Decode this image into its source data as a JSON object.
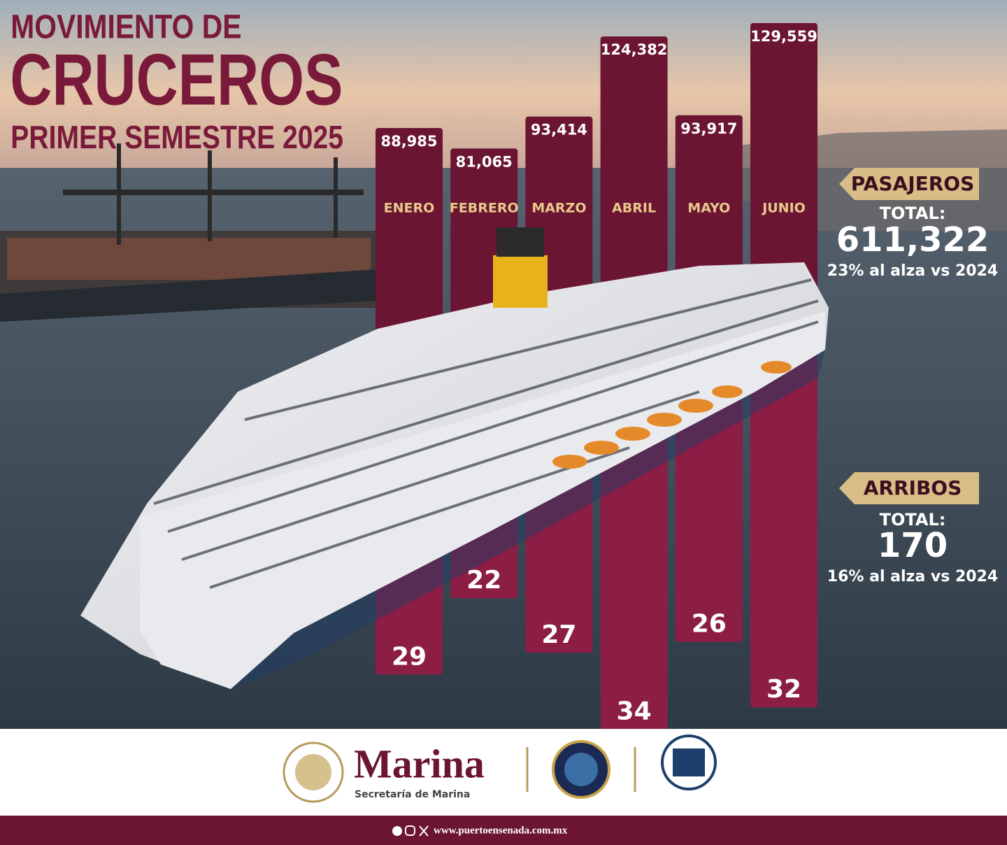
{
  "chart_data": {
    "type": "bar",
    "title": [
      "MOVIMIENTO DE",
      "CRUCEROS",
      "PRIMER SEMESTRE 2025"
    ],
    "categories": [
      "ENERO",
      "FEBRERO",
      "MARZO",
      "ABRIL",
      "MAYO",
      "JUNIO"
    ],
    "series": [
      {
        "name": "PASAJEROS",
        "color": "#6b1533",
        "values": [
          88985,
          81065,
          93414,
          124382,
          93917,
          129559
        ],
        "value_labels": [
          "88,985",
          "81,065",
          "93,414",
          "124,382",
          "93,917",
          "129,559"
        ],
        "total_label": "TOTAL:",
        "total": "611,322",
        "change": "23% al alza vs 2024"
      },
      {
        "name": "ARRIBOS",
        "color": "#8c1d45",
        "values": [
          29,
          22,
          27,
          34,
          26,
          32
        ],
        "total_label": "TOTAL:",
        "total": "170",
        "change": "16% al alza vs 2024"
      }
    ]
  },
  "footer": {
    "brand": "Marina",
    "brand_sub": "Secretaría de Marina",
    "website": "www.puertoensenada.com.mx"
  }
}
